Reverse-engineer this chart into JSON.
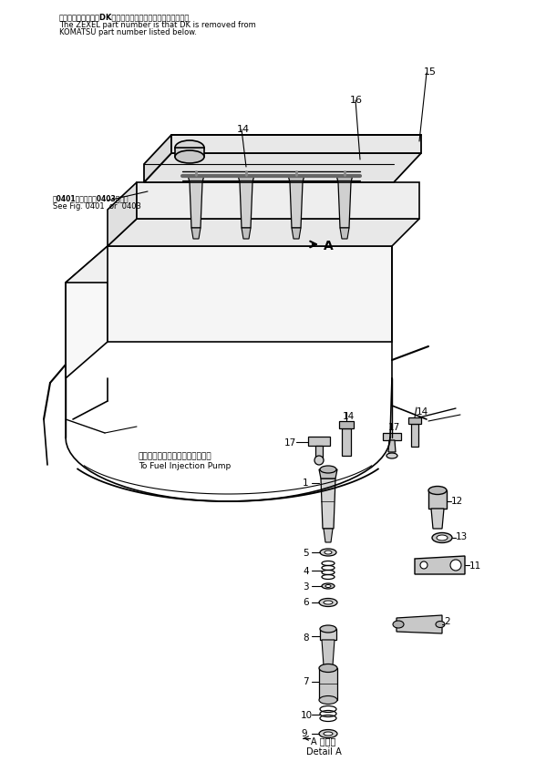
{
  "bg_color": "#ffffff",
  "title_jp": "品番のメーカー記号DKを除いたものがゼクセルの品番です。",
  "title_en1": "The ZEXEL part number is that DK is removed from",
  "title_en2": "KOMATSU part number listed below.",
  "note_jp": "図0401図または図0403図参照",
  "note_en": "See Fig. 0401  or  0403",
  "pump_jp": "フェルインジェクションポンプへ",
  "pump_en": "To Fuel Injection Pump",
  "detail_label": "A 詳細図",
  "detail_en": "Detail A",
  "line_color": "#000000",
  "text_color": "#000000",
  "figsize": [
    5.99,
    8.47
  ],
  "dpi": 100
}
